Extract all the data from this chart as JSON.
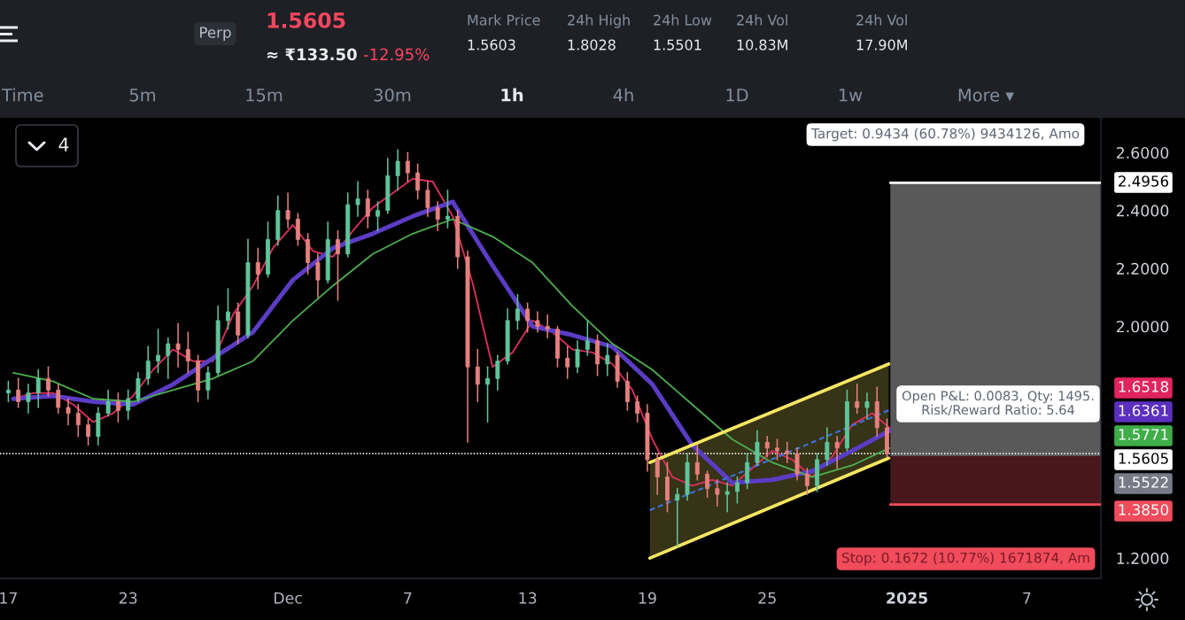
{
  "chart_data": {
    "type": "candlestick",
    "xlim": [
      "2024-11-16T14:00",
      "2025-01-10T17:00"
    ],
    "ylim": [
      1.13,
      2.72
    ],
    "xticks": [
      {
        "value": "2024-11-17",
        "label": "17"
      },
      {
        "value": "2024-11-23",
        "label": "23"
      },
      {
        "value": "2024-12-01",
        "label": "Dec"
      },
      {
        "value": "2024-12-07",
        "label": "7"
      },
      {
        "value": "2024-12-13",
        "label": "13"
      },
      {
        "value": "2024-12-19",
        "label": "19"
      },
      {
        "value": "2024-12-25",
        "label": "25"
      },
      {
        "value": "2025-01-01",
        "label": "2025"
      },
      {
        "value": "2025-01-07",
        "label": "7"
      }
    ],
    "yticks": [
      {
        "value": 1.2,
        "label": "1.2000"
      },
      {
        "value": 2.0,
        "label": "2.0000"
      },
      {
        "value": 2.2,
        "label": "2.2000"
      },
      {
        "value": 2.4,
        "label": "2.4000"
      },
      {
        "value": 2.6,
        "label": "2.6000"
      }
    ],
    "series": [
      {
        "x": [
          "2024-11-17T00:00",
          "2024-11-17T12:00",
          "2024-11-18T00:00",
          "2024-11-18T12:00",
          "2024-11-19T00:00",
          "2024-11-19T12:00",
          "2024-11-20T00:00",
          "2024-11-20T12:00",
          "2024-11-21T00:00",
          "2024-11-21T12:00",
          "2024-11-22T00:00",
          "2024-11-22T12:00",
          "2024-11-23T00:00",
          "2024-11-23T12:00",
          "2024-11-24T00:00",
          "2024-11-24T12:00",
          "2024-11-25T00:00",
          "2024-11-25T12:00",
          "2024-11-26T00:00",
          "2024-11-26T12:00",
          "2024-11-27T00:00",
          "2024-11-27T12:00",
          "2024-11-28T00:00",
          "2024-11-28T12:00",
          "2024-11-29T00:00",
          "2024-11-29T12:00",
          "2024-11-30T00:00",
          "2024-11-30T12:00",
          "2024-12-01T00:00",
          "2024-12-01T12:00",
          "2024-12-02T00:00",
          "2024-12-02T12:00",
          "2024-12-03T00:00",
          "2024-12-03T12:00",
          "2024-12-04T00:00",
          "2024-12-04T12:00",
          "2024-12-05T00:00",
          "2024-12-05T12:00",
          "2024-12-06T00:00",
          "2024-12-06T12:00",
          "2024-12-07T00:00",
          "2024-12-07T12:00",
          "2024-12-08T00:00",
          "2024-12-08T12:00",
          "2024-12-09T00:00",
          "2024-12-09T12:00",
          "2024-12-10T00:00",
          "2024-12-10T12:00",
          "2024-12-11T00:00",
          "2024-12-11T12:00",
          "2024-12-12T00:00",
          "2024-12-12T12:00",
          "2024-12-13T00:00",
          "2024-12-13T12:00",
          "2024-12-14T00:00",
          "2024-12-14T12:00",
          "2024-12-15T00:00",
          "2024-12-15T12:00",
          "2024-12-16T00:00",
          "2024-12-16T12:00",
          "2024-12-17T00:00",
          "2024-12-17T12:00",
          "2024-12-18T00:00",
          "2024-12-18T12:00",
          "2024-12-19T00:00",
          "2024-12-19T12:00",
          "2024-12-20T00:00",
          "2024-12-20T12:00",
          "2024-12-21T00:00",
          "2024-12-21T12:00",
          "2024-12-22T00:00",
          "2024-12-22T12:00",
          "2024-12-23T00:00",
          "2024-12-23T12:00",
          "2024-12-24T00:00",
          "2024-12-24T12:00",
          "2024-12-25T00:00",
          "2024-12-25T12:00",
          "2024-12-26T00:00",
          "2024-12-26T12:00",
          "2024-12-27T00:00",
          "2024-12-27T12:00",
          "2024-12-28T00:00",
          "2024-12-28T12:00",
          "2024-12-29T00:00",
          "2024-12-29T12:00",
          "2024-12-30T00:00",
          "2024-12-30T12:00",
          "2024-12-31T00:00"
        ],
        "ohlc": [
          [
            1.77,
            1.81,
            1.74,
            1.78
          ],
          [
            1.78,
            1.82,
            1.72,
            1.74
          ],
          [
            1.74,
            1.8,
            1.7,
            1.77
          ],
          [
            1.77,
            1.85,
            1.72,
            1.82
          ],
          [
            1.82,
            1.86,
            1.76,
            1.78
          ],
          [
            1.78,
            1.8,
            1.7,
            1.72
          ],
          [
            1.72,
            1.75,
            1.66,
            1.7
          ],
          [
            1.7,
            1.73,
            1.62,
            1.66
          ],
          [
            1.66,
            1.68,
            1.59,
            1.62
          ],
          [
            1.62,
            1.72,
            1.59,
            1.7
          ],
          [
            1.7,
            1.78,
            1.69,
            1.74
          ],
          [
            1.74,
            1.77,
            1.67,
            1.71
          ],
          [
            1.71,
            1.78,
            1.68,
            1.75
          ],
          [
            1.75,
            1.84,
            1.74,
            1.82
          ],
          [
            1.82,
            1.93,
            1.8,
            1.88
          ],
          [
            1.88,
            1.99,
            1.84,
            1.9
          ],
          [
            1.9,
            1.96,
            1.82,
            1.94
          ],
          [
            1.94,
            2.01,
            1.86,
            1.92
          ],
          [
            1.92,
            1.98,
            1.84,
            1.88
          ],
          [
            1.88,
            1.9,
            1.74,
            1.78
          ],
          [
            1.78,
            1.86,
            1.75,
            1.84
          ],
          [
            1.84,
            2.07,
            1.83,
            2.02
          ],
          [
            2.02,
            2.13,
            1.99,
            2.05
          ],
          [
            2.05,
            2.08,
            1.94,
            1.97
          ],
          [
            1.97,
            2.3,
            1.96,
            2.22
          ],
          [
            2.22,
            2.27,
            2.13,
            2.18
          ],
          [
            2.18,
            2.36,
            2.17,
            2.3
          ],
          [
            2.3,
            2.45,
            2.28,
            2.4
          ],
          [
            2.4,
            2.46,
            2.34,
            2.37
          ],
          [
            2.37,
            2.39,
            2.28,
            2.3
          ],
          [
            2.3,
            2.32,
            2.18,
            2.22
          ],
          [
            2.22,
            2.25,
            2.1,
            2.16
          ],
          [
            2.16,
            2.36,
            2.15,
            2.3
          ],
          [
            2.3,
            2.33,
            2.09,
            2.25
          ],
          [
            2.25,
            2.46,
            2.24,
            2.42
          ],
          [
            2.42,
            2.5,
            2.38,
            2.44
          ],
          [
            2.44,
            2.47,
            2.34,
            2.38
          ],
          [
            2.38,
            2.43,
            2.33,
            2.4
          ],
          [
            2.4,
            2.58,
            2.39,
            2.52
          ],
          [
            2.52,
            2.61,
            2.47,
            2.57
          ],
          [
            2.57,
            2.6,
            2.5,
            2.53
          ],
          [
            2.53,
            2.56,
            2.44,
            2.47
          ],
          [
            2.47,
            2.5,
            2.38,
            2.41
          ],
          [
            2.41,
            2.43,
            2.33,
            2.37
          ],
          [
            2.37,
            2.47,
            2.34,
            2.38
          ],
          [
            2.38,
            2.4,
            2.2,
            2.24
          ],
          [
            2.24,
            2.26,
            1.6,
            1.86
          ],
          [
            1.86,
            1.92,
            1.74,
            1.8
          ],
          [
            1.8,
            1.86,
            1.67,
            1.82
          ],
          [
            1.82,
            1.9,
            1.78,
            1.88
          ],
          [
            1.88,
            2.06,
            1.87,
            2.02
          ],
          [
            2.02,
            2.11,
            1.99,
            2.06
          ],
          [
            2.06,
            2.08,
            1.98,
            2.02
          ],
          [
            2.02,
            2.05,
            1.98,
            2.0
          ],
          [
            2.0,
            2.04,
            1.96,
            1.99
          ],
          [
            1.99,
            2.0,
            1.86,
            1.89
          ],
          [
            1.89,
            1.93,
            1.82,
            1.86
          ],
          [
            1.86,
            1.95,
            1.84,
            1.92
          ],
          [
            1.92,
            2.02,
            1.9,
            1.95
          ],
          [
            1.95,
            1.97,
            1.83,
            1.87
          ],
          [
            1.87,
            1.94,
            1.83,
            1.9
          ],
          [
            1.9,
            1.91,
            1.79,
            1.81
          ],
          [
            1.81,
            1.84,
            1.71,
            1.74
          ],
          [
            1.74,
            1.76,
            1.67,
            1.7
          ],
          [
            1.7,
            1.73,
            1.5,
            1.54
          ],
          [
            1.54,
            1.56,
            1.42,
            1.48
          ],
          [
            1.48,
            1.53,
            1.36,
            1.4
          ],
          [
            1.4,
            1.44,
            1.24,
            1.42
          ],
          [
            1.42,
            1.56,
            1.4,
            1.53
          ],
          [
            1.53,
            1.59,
            1.47,
            1.49
          ],
          [
            1.49,
            1.5,
            1.41,
            1.44
          ],
          [
            1.44,
            1.47,
            1.38,
            1.42
          ],
          [
            1.42,
            1.46,
            1.36,
            1.43
          ],
          [
            1.43,
            1.48,
            1.39,
            1.46
          ],
          [
            1.46,
            1.56,
            1.44,
            1.53
          ],
          [
            1.53,
            1.64,
            1.52,
            1.6
          ],
          [
            1.6,
            1.62,
            1.55,
            1.58
          ],
          [
            1.58,
            1.61,
            1.54,
            1.57
          ],
          [
            1.57,
            1.6,
            1.53,
            1.56
          ],
          [
            1.56,
            1.58,
            1.47,
            1.49
          ],
          [
            1.49,
            1.51,
            1.42,
            1.45
          ],
          [
            1.45,
            1.56,
            1.43,
            1.54
          ],
          [
            1.54,
            1.65,
            1.52,
            1.6
          ],
          [
            1.6,
            1.62,
            1.51,
            1.58
          ],
          [
            1.58,
            1.78,
            1.57,
            1.74
          ],
          [
            1.74,
            1.8,
            1.7,
            1.72
          ],
          [
            1.72,
            1.77,
            1.68,
            1.74
          ],
          [
            1.74,
            1.79,
            1.62,
            1.65
          ],
          [
            1.65,
            1.68,
            1.55,
            1.5605
          ]
        ],
        "colors": [
          "#5fc59b",
          "#e4817e",
          "#5fc59b",
          "#5fc59b",
          "#e4817e",
          "#e4817e",
          "#e4817e",
          "#e4817e",
          "#e4817e",
          "#5fc59b",
          "#5fc59b",
          "#e4817e",
          "#5fc59b",
          "#5fc59b",
          "#5fc59b",
          "#5fc59b",
          "#5fc59b",
          "#e4817e",
          "#e4817e",
          "#e4817e",
          "#5fc59b",
          "#5fc59b",
          "#5fc59b",
          "#e4817e",
          "#5fc59b",
          "#e4817e",
          "#5fc59b",
          "#5fc59b",
          "#e4817e",
          "#e4817e",
          "#e4817e",
          "#e4817e",
          "#5fc59b",
          "#e4817e",
          "#5fc59b",
          "#5fc59b",
          "#e4817e",
          "#5fc59b",
          "#5fc59b",
          "#5fc59b",
          "#e4817e",
          "#e4817e",
          "#e4817e",
          "#e4817e",
          "#5fc59b",
          "#e4817e",
          "#e4817e",
          "#e4817e",
          "#5fc59b",
          "#5fc59b",
          "#5fc59b",
          "#5fc59b",
          "#e4817e",
          "#e4817e",
          "#e4817e",
          "#e4817e",
          "#e4817e",
          "#5fc59b",
          "#5fc59b",
          "#e4817e",
          "#5fc59b",
          "#e4817e",
          "#e4817e",
          "#e4817e",
          "#e4817e",
          "#e4817e",
          "#e4817e",
          "#5fc59b",
          "#5fc59b",
          "#e4817e",
          "#e4817e",
          "#e4817e",
          "#5fc59b",
          "#5fc59b",
          "#5fc59b",
          "#5fc59b",
          "#e4817e",
          "#e4817e",
          "#e4817e",
          "#e4817e",
          "#e4817e",
          "#5fc59b",
          "#5fc59b",
          "#e4817e",
          "#5fc59b",
          "#e4817e",
          "#5fc59b",
          "#e4817e",
          "#e4817e"
        ]
      },
      {
        "type": "line",
        "color": "#d42e5b",
        "x": [
          "2024-11-17T06:00",
          "2024-11-18T06:00",
          "2024-11-19T06:00",
          "2024-11-20T06:00",
          "2024-11-21T06:00",
          "2024-11-22T06:00",
          "2024-11-23T06:00",
          "2024-11-24T06:00",
          "2024-11-25T06:00",
          "2024-11-26T06:00",
          "2024-11-27T06:00",
          "2024-11-28T06:00",
          "2024-11-29T06:00",
          "2024-11-30T06:00",
          "2024-12-01T06:00",
          "2024-12-02T06:00",
          "2024-12-03T06:00",
          "2024-12-04T06:00",
          "2024-12-05T06:00",
          "2024-12-06T06:00",
          "2024-12-07T06:00",
          "2024-12-08T06:00",
          "2024-12-09T06:00",
          "2024-12-10T06:00",
          "2024-12-11T06:00",
          "2024-12-12T06:00",
          "2024-12-13T06:00",
          "2024-12-14T06:00",
          "2024-12-15T06:00",
          "2024-12-16T06:00",
          "2024-12-17T06:00",
          "2024-12-18T06:00",
          "2024-12-19T06:00",
          "2024-12-20T06:00",
          "2024-12-21T06:00",
          "2024-12-22T06:00",
          "2024-12-23T06:00",
          "2024-12-24T06:00",
          "2024-12-25T06:00",
          "2024-12-26T06:00",
          "2024-12-27T06:00",
          "2024-12-28T06:00",
          "2024-12-29T06:00",
          "2024-12-30T06:00",
          "2024-12-31T03:00"
        ],
        "values": [
          1.75,
          1.77,
          1.77,
          1.73,
          1.67,
          1.7,
          1.76,
          1.85,
          1.92,
          1.88,
          1.88,
          2.04,
          2.14,
          2.27,
          2.35,
          2.26,
          2.24,
          2.33,
          2.41,
          2.46,
          2.51,
          2.5,
          2.38,
          2.15,
          1.86,
          1.91,
          2.02,
          1.98,
          1.92,
          1.91,
          1.87,
          1.78,
          1.61,
          1.48,
          1.45,
          1.47,
          1.45,
          1.51,
          1.57,
          1.54,
          1.48,
          1.55,
          1.66,
          1.7,
          1.65
        ]
      },
      {
        "type": "line",
        "color": "#5b3cc4",
        "x": [
          "2024-11-17T06:00",
          "2024-11-19T06:00",
          "2024-11-21T06:00",
          "2024-11-23T06:00",
          "2024-11-25T06:00",
          "2024-11-27T06:00",
          "2024-11-29T06:00",
          "2024-12-01T06:00",
          "2024-12-03T06:00",
          "2024-12-05T06:00",
          "2024-12-07T06:00",
          "2024-12-09T06:00",
          "2024-12-11T06:00",
          "2024-12-13T06:00",
          "2024-12-15T06:00",
          "2024-12-17T06:00",
          "2024-12-19T06:00",
          "2024-12-21T06:00",
          "2024-12-23T06:00",
          "2024-12-25T06:00",
          "2024-12-27T06:00",
          "2024-12-29T06:00",
          "2024-12-31T03:00"
        ],
        "values": [
          1.75,
          1.76,
          1.74,
          1.73,
          1.8,
          1.89,
          1.98,
          2.16,
          2.27,
          2.32,
          2.38,
          2.43,
          2.21,
          2.0,
          1.97,
          1.93,
          1.8,
          1.59,
          1.46,
          1.47,
          1.5,
          1.57,
          1.64
        ]
      },
      {
        "type": "line",
        "color": "#4caf50",
        "x": [
          "2024-11-17T06:00",
          "2024-11-19T06:00",
          "2024-11-21T06:00",
          "2024-11-23T06:00",
          "2024-11-25T06:00",
          "2024-11-27T06:00",
          "2024-11-29T06:00",
          "2024-12-01T06:00",
          "2024-12-03T06:00",
          "2024-12-05T06:00",
          "2024-12-07T06:00",
          "2024-12-09T06:00",
          "2024-12-11T06:00",
          "2024-12-13T06:00",
          "2024-12-15T06:00",
          "2024-12-17T06:00",
          "2024-12-19T06:00",
          "2024-12-21T06:00",
          "2024-12-23T06:00",
          "2024-12-25T06:00",
          "2024-12-27T06:00",
          "2024-12-29T06:00",
          "2024-12-31T03:00"
        ],
        "values": [
          1.84,
          1.81,
          1.75,
          1.74,
          1.78,
          1.82,
          1.88,
          2.02,
          2.14,
          2.25,
          2.32,
          2.37,
          2.31,
          2.22,
          2.07,
          1.94,
          1.85,
          1.73,
          1.61,
          1.53,
          1.48,
          1.52,
          1.58
        ]
      },
      {
        "type": "line",
        "color": "#f5e663",
        "x": [
          "2024-12-19T03:00",
          "2024-12-31T02:00"
        ],
        "values": [
          1.53,
          1.87
        ],
        "lower": [
          1.2,
          1.545
        ],
        "upper": [
          1.53,
          1.87
        ]
      },
      {
        "type": "line",
        "color": "#f5e663",
        "x": [
          "2024-12-19T03:00",
          "2024-12-31T02:00"
        ],
        "values": [
          1.2,
          1.545
        ]
      },
      {
        "type": "line",
        "color": "#3d6fd6",
        "line_style": "dashed",
        "x": [
          "2024-12-19T03:00",
          "2024-12-31T02:00"
        ],
        "values": [
          1.365,
          1.71
        ]
      },
      {
        "type": "line",
        "color": "#ffffff",
        "x": [
          "2024-12-31T04:00",
          "2025-01-10T17:00"
        ],
        "values": [
          2.4956,
          2.4956
        ],
        "lower": [
          1.5522,
          1.5522
        ],
        "upper": [
          2.4956,
          2.4956
        ]
      },
      {
        "type": "line",
        "color": "#f04c5c",
        "x": [
          "2024-12-31T04:00",
          "2025-01-10T17:00"
        ],
        "values": [
          1.385,
          1.385
        ],
        "lower": [
          1.385,
          1.385
        ],
        "upper": [
          1.5522,
          1.5522
        ]
      }
    ],
    "ref_lines": [
      {
        "axis": "y",
        "value": 1.5605,
        "color": "#ffffff",
        "line_style": "dotted"
      }
    ],
    "annotations": [
      "Perp",
      "1.5605",
      "≈ ₹133.50",
      "-12.95%",
      "Mark Price",
      "1.5603",
      "24h High",
      "1.8028",
      "24h Low",
      "1.5501",
      "24h Vol",
      "10.83M",
      "24h Vol",
      "17.90M",
      "Time",
      "5m",
      "15m",
      "30m",
      "1h",
      "4h",
      "1D",
      "1w",
      "More ▾",
      "4",
      "Target: 0.9434 (60.78%) 9434126, Amo",
      "Open P&L: 0.0083, Qty: 1495.\nRisk/Reward Ratio: 5.64",
      "Stop: 0.1672 (10.77%) 1671874, Am",
      "2.4956",
      "1.6518",
      "1.6361",
      "1.5771",
      "1.5605",
      "1.5522",
      "1.3850"
    ]
  }
}
